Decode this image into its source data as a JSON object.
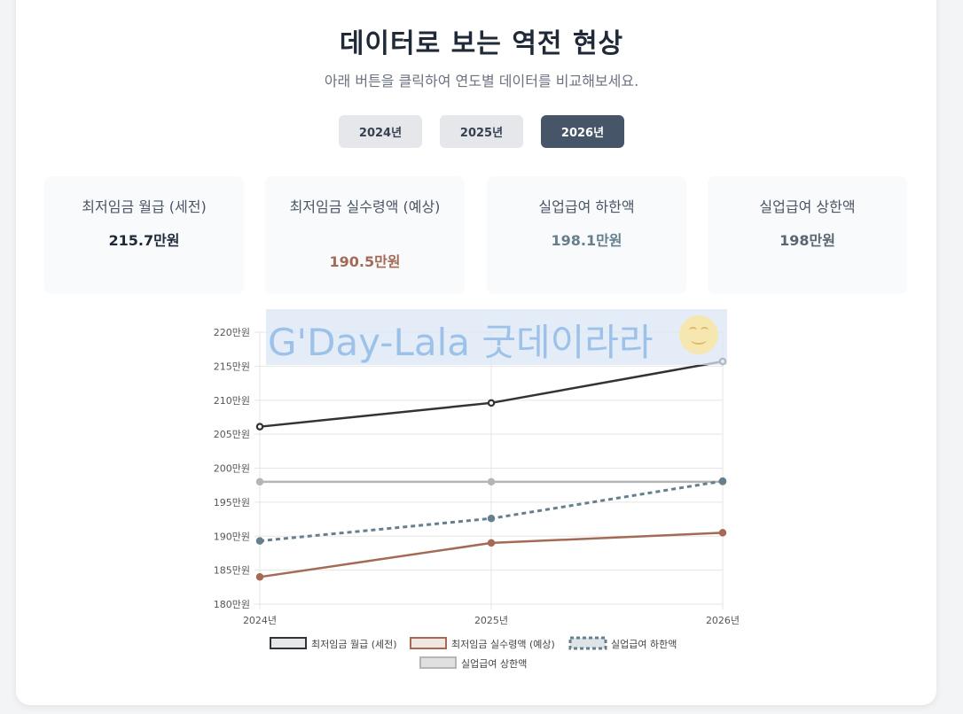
{
  "header": {
    "title": "데이터로 보는 역전 현상",
    "subtitle": "아래 버튼을 클릭하여 연도별 데이터를 비교해보세요."
  },
  "year_buttons": [
    "2024년",
    "2025년",
    "2026년"
  ],
  "selected_year": "2026년",
  "stats": [
    {
      "label": "최저임금 월급 (세전)",
      "value": "215.7만원",
      "color": "#1f2937"
    },
    {
      "label": "최저임금 실수령액 (예상)",
      "value": "190.5만원",
      "color": "#a46a56"
    },
    {
      "label": "실업급여 하한액",
      "value": "198.1만원",
      "color": "#667f8e"
    },
    {
      "label": "실업급여 상한액",
      "value": "198만원",
      "color": "#5b6673"
    }
  ],
  "watermark": {
    "text": "G'Day-Lala 굿데이라라"
  },
  "chart_data": {
    "type": "line",
    "categories": [
      "2024년",
      "2025년",
      "2026년"
    ],
    "ylim": [
      180,
      220
    ],
    "y_ticks": [
      "180만원",
      "185만원",
      "190만원",
      "195만원",
      "200만원",
      "205만원",
      "210만원",
      "215만원",
      "220만원"
    ],
    "grid": true,
    "legend_position": "bottom",
    "series": [
      {
        "name": "최저임금 월급 (세전)",
        "values": [
          206.1,
          209.6,
          215.7
        ],
        "color": "#333333",
        "dash": false
      },
      {
        "name": "최저임금 실수령액 (예상)",
        "values": [
          184.0,
          189.0,
          190.5
        ],
        "color": "#a46a56",
        "dash": false
      },
      {
        "name": "실업급여 하한액",
        "values": [
          189.3,
          192.6,
          198.1
        ],
        "color": "#667f8e",
        "dash": true
      },
      {
        "name": "실업급여 상한액",
        "values": [
          198.0,
          198.0,
          198.0
        ],
        "color": "#b5b5b5",
        "dash": false
      }
    ]
  }
}
